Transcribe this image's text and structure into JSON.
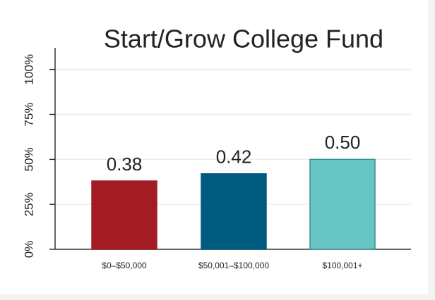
{
  "chart_data": {
    "type": "bar",
    "title": "Start/Grow College Fund",
    "categories": [
      "$0–$50,000",
      "$50,001–$100,000",
      "$100,001+"
    ],
    "values": [
      0.38,
      0.42,
      0.5
    ],
    "value_labels": [
      "0.38",
      "0.42",
      "0.50"
    ],
    "colors": [
      "#a31c24",
      "#005b80",
      "#67c6c3"
    ],
    "ylim": [
      0,
      1.12
    ],
    "yticks": [
      {
        "value": 0,
        "label": "0%"
      },
      {
        "value": 0.25,
        "label": "25%"
      },
      {
        "value": 0.5,
        "label": "50%"
      },
      {
        "value": 0.75,
        "label": "75%"
      },
      {
        "value": 1,
        "label": "100%"
      }
    ],
    "grid": true
  }
}
